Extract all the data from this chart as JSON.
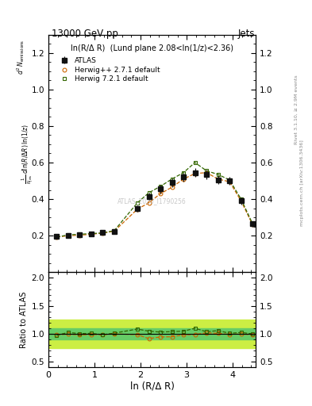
{
  "title_left": "13000 GeV pp",
  "title_right": "Jets",
  "right_label_top": "Rivet 3.1.10, ≥ 2.9M events",
  "right_label_bottom": "mcplots.cern.ch [arXiv:1306.3436]",
  "annotation": "ln(R/Δ R)  (Lund plane 2.08<ln(1/z)<2.36)",
  "watermark": "ATLAS_2020_I1790256",
  "ylabel_main_line1": "d² Nₙₑₘₐₛₛᵢₒₙₛ",
  "ylabel_main_line2": "1",
  "ylabel_ratio": "Ratio to ATLAS",
  "xlabel": "ln (R/Δ R)",
  "xlim": [
    0,
    4.5
  ],
  "ylim_main": [
    0.0,
    1.3
  ],
  "ylim_ratio": [
    0.4,
    2.1
  ],
  "yticks_main": [
    0.2,
    0.4,
    0.6,
    0.8,
    1.0,
    1.2
  ],
  "yticks_ratio": [
    0.5,
    1.0,
    1.5,
    2.0
  ],
  "xticks": [
    0,
    1,
    2,
    3,
    4
  ],
  "atlas_x": [
    0.18,
    0.43,
    0.68,
    0.93,
    1.18,
    1.43,
    1.93,
    2.18,
    2.43,
    2.68,
    2.93,
    3.18,
    3.43,
    3.68,
    3.93,
    4.18,
    4.43
  ],
  "atlas_y": [
    0.197,
    0.2,
    0.207,
    0.21,
    0.218,
    0.225,
    0.35,
    0.415,
    0.455,
    0.49,
    0.52,
    0.545,
    0.535,
    0.505,
    0.5,
    0.39,
    0.265
  ],
  "atlas_yerr": [
    0.01,
    0.01,
    0.01,
    0.01,
    0.01,
    0.012,
    0.018,
    0.02,
    0.022,
    0.023,
    0.024,
    0.025,
    0.025,
    0.024,
    0.023,
    0.02,
    0.015
  ],
  "herwig1_x": [
    0.18,
    0.43,
    0.68,
    0.93,
    1.18,
    1.43,
    1.93,
    2.18,
    2.43,
    2.68,
    2.93,
    3.18,
    3.43,
    3.68,
    3.93,
    4.18,
    4.43
  ],
  "herwig1_y": [
    0.193,
    0.2,
    0.203,
    0.208,
    0.215,
    0.225,
    0.345,
    0.38,
    0.43,
    0.465,
    0.51,
    0.54,
    0.545,
    0.51,
    0.495,
    0.39,
    0.26
  ],
  "herwig1_color": "#cc6600",
  "herwig1_label": "Herwig++ 2.7.1 default",
  "herwig2_x": [
    0.18,
    0.43,
    0.68,
    0.93,
    1.18,
    1.43,
    1.93,
    2.18,
    2.43,
    2.68,
    2.93,
    3.18,
    3.43,
    3.68,
    3.93,
    4.18,
    4.43
  ],
  "herwig2_y": [
    0.192,
    0.205,
    0.208,
    0.212,
    0.215,
    0.228,
    0.38,
    0.435,
    0.47,
    0.51,
    0.545,
    0.6,
    0.555,
    0.535,
    0.505,
    0.4,
    0.265
  ],
  "herwig2_color": "#336600",
  "herwig2_label": "Herwig 7.2.1 default",
  "ratio1_y": [
    0.98,
    0.998,
    0.98,
    0.99,
    0.985,
    1.0,
    0.986,
    0.915,
    0.945,
    0.948,
    0.981,
    0.99,
    1.019,
    1.01,
    0.99,
    1.0,
    0.98
  ],
  "ratio2_y": [
    0.975,
    1.025,
    1.005,
    1.009,
    0.985,
    1.013,
    1.086,
    1.048,
    1.032,
    1.04,
    1.048,
    1.1,
    1.037,
    1.059,
    1.01,
    1.025,
    1.0
  ],
  "band_inner_low": 0.9,
  "band_inner_high": 1.1,
  "band_outer_low": 0.75,
  "band_outer_high": 1.25,
  "band_inner_color": "#66cc66",
  "band_outer_color": "#ccee44",
  "atlas_color": "#111111",
  "atlas_markersize": 4.5
}
